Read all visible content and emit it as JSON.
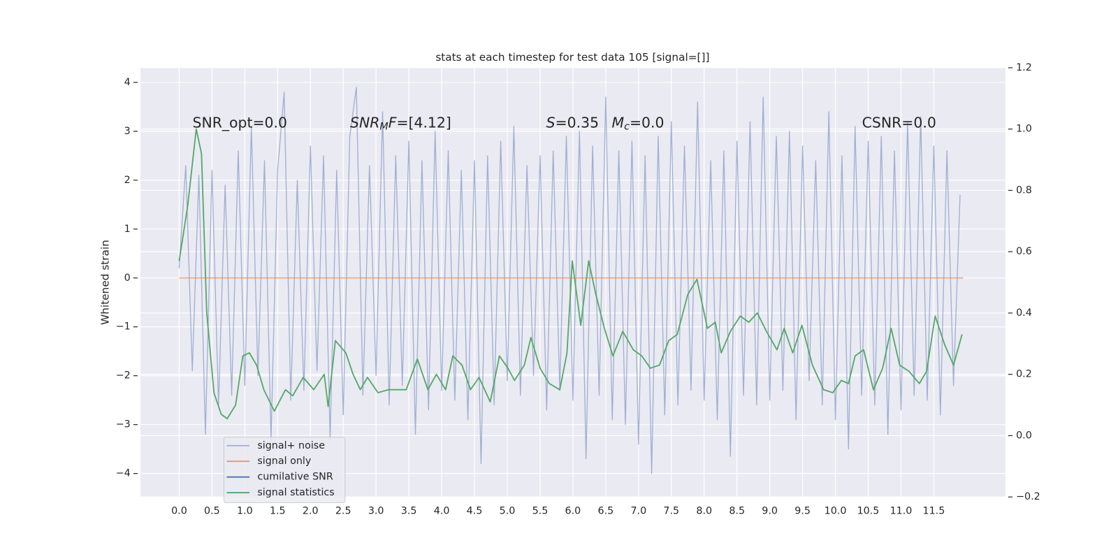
{
  "chart_data": {
    "type": "line",
    "title": "stats at each timestep for test data 105 [signal=[]]",
    "ylabel": "Whitened strain",
    "xlim": [
      -0.59,
      12.59
    ],
    "ylim": [
      -4.48,
      4.3
    ],
    "y2lim": [
      -0.2,
      1.2
    ],
    "grid": true,
    "legend": "lower left",
    "xticks": [
      {
        "value": 0,
        "label": "0.0"
      },
      0.5,
      {
        "value": 1,
        "label": "1.0"
      },
      1.5,
      {
        "value": 2,
        "label": "2.0"
      },
      2.5,
      {
        "value": 3,
        "label": "3.0"
      },
      3.5,
      {
        "value": 4,
        "label": "4.0"
      },
      4.5,
      {
        "value": 5,
        "label": "5.0"
      },
      5.5,
      {
        "value": 6,
        "label": "6.0"
      },
      6.5,
      {
        "value": 7,
        "label": "7.0"
      },
      7.5,
      {
        "value": 8,
        "label": "8.0"
      },
      8.5,
      {
        "value": 9,
        "label": "9.0"
      },
      9.5,
      {
        "value": 10,
        "label": "10.0"
      },
      10.5,
      {
        "value": 11,
        "label": "11.0"
      },
      11.5
    ],
    "yticks": [
      {
        "value": -4,
        "label": "−4"
      },
      {
        "value": -3,
        "label": "−3"
      },
      {
        "value": -2,
        "label": "−2"
      },
      {
        "value": -1,
        "label": "−1"
      },
      0,
      1,
      2,
      3,
      4
    ],
    "y2ticks": [
      {
        "value": -0.2,
        "label": "−0.2"
      },
      {
        "value": 0,
        "label": "0.0"
      },
      0.2,
      0.4,
      0.6,
      0.8,
      {
        "value": 1,
        "label": "1.0"
      },
      1.2
    ],
    "annotations": [
      [
        {
          "text": "SNR_opt=0.0"
        }
      ],
      [
        {
          "text": "SNR",
          "italic": true
        },
        {
          "text": "M",
          "italic": true,
          "sub": true
        },
        {
          "text": "F",
          "italic": true
        },
        {
          "text": "=[4.12]"
        }
      ],
      [
        {
          "text": "S",
          "italic": true
        },
        {
          "text": "=0.35"
        }
      ],
      [
        {
          "text": "M",
          "italic": true
        },
        {
          "text": "c",
          "italic": true,
          "sub": true
        },
        {
          "text": "=0.0"
        }
      ],
      [
        {
          "text": "CSNR=0.0"
        }
      ]
    ],
    "series": [
      {
        "name": "signal+ noise",
        "color": "#8da0cb",
        "x": [
          0,
          0.1,
          0.2,
          0.3,
          0.4,
          0.5,
          0.6,
          0.7,
          0.8,
          0.9,
          1.0,
          1.1,
          1.2,
          1.3,
          1.4,
          1.5,
          1.6,
          1.7,
          1.8,
          1.9,
          2.0,
          2.1,
          2.2,
          2.3,
          2.4,
          2.5,
          2.6,
          2.7,
          2.8,
          2.9,
          3.0,
          3.1,
          3.2,
          3.3,
          3.4,
          3.5,
          3.6,
          3.7,
          3.8,
          3.9,
          4.0,
          4.1,
          4.2,
          4.3,
          4.4,
          4.5,
          4.6,
          4.7,
          4.8,
          4.9,
          5.0,
          5.1,
          5.2,
          5.3,
          5.4,
          5.5,
          5.6,
          5.7,
          5.8,
          5.9,
          6.0,
          6.1,
          6.2,
          6.3,
          6.4,
          6.5,
          6.6,
          6.7,
          6.8,
          6.9,
          7.0,
          7.1,
          7.2,
          7.3,
          7.4,
          7.5,
          7.6,
          7.7,
          7.8,
          7.9,
          8.0,
          8.1,
          8.2,
          8.3,
          8.4,
          8.5,
          8.6,
          8.7,
          8.8,
          8.9,
          9.0,
          9.1,
          9.2,
          9.3,
          9.4,
          9.5,
          9.6,
          9.7,
          9.8,
          9.9,
          10.0,
          10.1,
          10.2,
          10.3,
          10.4,
          10.5,
          10.6,
          10.7,
          10.8,
          10.9,
          11.0,
          11.1,
          11.2,
          11.3,
          11.4,
          11.5,
          11.6,
          11.7,
          11.8,
          11.9
        ],
        "values": [
          0.2,
          2.3,
          -1.9,
          2.1,
          -3.2,
          2.2,
          -2.6,
          1.9,
          -2.4,
          2.6,
          -2.2,
          3.1,
          -2.0,
          2.4,
          -3.3,
          2.2,
          3.8,
          -2.5,
          2.0,
          -2.3,
          2.7,
          -1.9,
          2.5,
          -3.3,
          2.2,
          -2.8,
          2.9,
          3.9,
          -2.4,
          2.3,
          -2.0,
          3.4,
          -2.6,
          2.5,
          -2.2,
          2.8,
          -3.2,
          2.4,
          -2.7,
          3.0,
          -2.3,
          2.6,
          -2.5,
          2.2,
          -2.9,
          2.4,
          -3.8,
          2.5,
          -2.6,
          2.8,
          -2.1,
          3.1,
          -2.4,
          2.3,
          -2.0,
          2.5,
          -2.7,
          2.6,
          -2.3,
          2.9,
          -2.5,
          3.0,
          -3.7,
          2.7,
          -2.4,
          3.7,
          -2.9,
          2.6,
          -3.0,
          2.8,
          -3.4,
          2.5,
          -4.0,
          2.9,
          -2.8,
          3.2,
          -2.6,
          2.7,
          -2.3,
          3.6,
          -2.5,
          2.4,
          -2.9,
          2.6,
          -3.65,
          2.8,
          -2.4,
          3.2,
          -2.6,
          3.7,
          -2.5,
          2.9,
          -2.3,
          3.0,
          -2.9,
          2.7,
          -2.1,
          2.4,
          -2.6,
          3.4,
          -2.9,
          2.5,
          -3.5,
          3.1,
          -2.4,
          2.8,
          -2.6,
          2.9,
          -3.2,
          2.6,
          -2.7,
          3.2,
          -2.4,
          3.3,
          -2.5,
          2.7,
          -2.8,
          2.6,
          -2.2,
          1.7
        ]
      },
      {
        "name": "signal only",
        "color": "#dd8452",
        "x": [
          0,
          11.95
        ],
        "values": [
          0,
          0
        ]
      },
      {
        "name": "cumilative SNR",
        "color": "#4c72b0",
        "x": [],
        "values": []
      },
      {
        "name": "signal statistics",
        "color": "#55a868",
        "axis": "y2",
        "x": [
          0,
          0.13,
          0.26,
          0.34,
          0.42,
          0.53,
          0.64,
          0.73,
          0.86,
          0.97,
          1.07,
          1.18,
          1.29,
          1.45,
          1.62,
          1.73,
          1.89,
          2.05,
          2.21,
          2.27,
          2.38,
          2.54,
          2.65,
          2.76,
          2.87,
          3.03,
          3.19,
          3.36,
          3.46,
          3.63,
          3.79,
          3.92,
          4.06,
          4.17,
          4.31,
          4.44,
          4.57,
          4.74,
          4.88,
          5.01,
          5.11,
          5.26,
          5.36,
          5.5,
          5.64,
          5.8,
          5.91,
          5.99,
          6.12,
          6.24,
          6.35,
          6.48,
          6.61,
          6.76,
          6.92,
          7.05,
          7.18,
          7.32,
          7.46,
          7.59,
          7.75,
          7.89,
          8.05,
          8.17,
          8.26,
          8.4,
          8.55,
          8.68,
          8.81,
          8.95,
          9.11,
          9.22,
          9.35,
          9.49,
          9.65,
          9.82,
          9.96,
          10.09,
          10.2,
          10.3,
          10.43,
          10.58,
          10.72,
          10.85,
          10.98,
          11.12,
          11.28,
          11.39,
          11.52,
          11.66,
          11.8,
          11.93
        ],
        "values": [
          0.57,
          0.75,
          1.0,
          0.92,
          0.4,
          0.14,
          0.07,
          0.055,
          0.1,
          0.26,
          0.27,
          0.23,
          0.15,
          0.08,
          0.15,
          0.13,
          0.19,
          0.15,
          0.2,
          0.095,
          0.31,
          0.27,
          0.2,
          0.15,
          0.19,
          0.14,
          0.15,
          0.15,
          0.15,
          0.25,
          0.15,
          0.2,
          0.15,
          0.26,
          0.23,
          0.15,
          0.19,
          0.11,
          0.26,
          0.22,
          0.18,
          0.23,
          0.32,
          0.22,
          0.17,
          0.15,
          0.27,
          0.57,
          0.36,
          0.57,
          0.46,
          0.35,
          0.26,
          0.34,
          0.28,
          0.26,
          0.22,
          0.23,
          0.31,
          0.33,
          0.46,
          0.51,
          0.35,
          0.37,
          0.27,
          0.34,
          0.39,
          0.37,
          0.4,
          0.34,
          0.28,
          0.35,
          0.27,
          0.36,
          0.23,
          0.15,
          0.14,
          0.18,
          0.17,
          0.26,
          0.28,
          0.15,
          0.22,
          0.35,
          0.23,
          0.21,
          0.17,
          0.21,
          0.39,
          0.3,
          0.23,
          0.33
        ]
      }
    ]
  }
}
